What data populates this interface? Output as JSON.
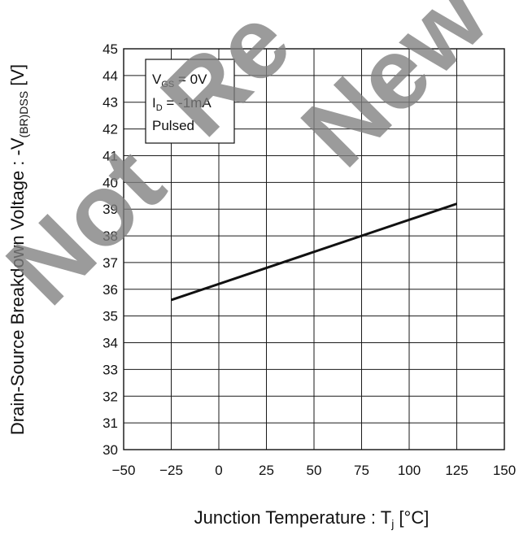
{
  "chart_data": {
    "type": "line",
    "title": "",
    "xlabel": {
      "text": "Junction Temperature : T",
      "sub": "j",
      "unit": " [°C]"
    },
    "ylabel": {
      "text": "Drain-Source Breakdown Voltage : -V",
      "sub": "(BR)DSS",
      "unit": " [V]"
    },
    "xlim": [
      -50,
      150
    ],
    "ylim": [
      30,
      45
    ],
    "x_ticks": [
      -50,
      -25,
      0,
      25,
      50,
      75,
      100,
      125,
      150
    ],
    "y_ticks": [
      30,
      31,
      32,
      33,
      34,
      35,
      36,
      37,
      38,
      39,
      40,
      41,
      42,
      43,
      44,
      45
    ],
    "x_tick_labels": [
      "−50",
      "−25",
      "0",
      "25",
      "50",
      "75",
      "100",
      "125",
      "150"
    ],
    "y_tick_labels": [
      "30",
      "31",
      "32",
      "33",
      "34",
      "35",
      "36",
      "37",
      "38",
      "39",
      "40",
      "41",
      "42",
      "43",
      "44",
      "45"
    ],
    "grid": true,
    "series": [
      {
        "x": [
          -25,
          125
        ],
        "y": [
          35.6,
          39.2
        ]
      }
    ],
    "conditions": {
      "vgs": {
        "main": "V",
        "sub": "GS",
        "rest": " = 0V"
      },
      "id": {
        "main": "I",
        "sub": "D",
        "rest": " = -1mA"
      },
      "mode": "Pulsed"
    }
  },
  "watermark": {
    "words": [
      "Not",
      "Re",
      "New"
    ]
  },
  "colors": {
    "line": "#111111",
    "grid": "#1a1a1a",
    "watermark": "#7f7f7f"
  }
}
